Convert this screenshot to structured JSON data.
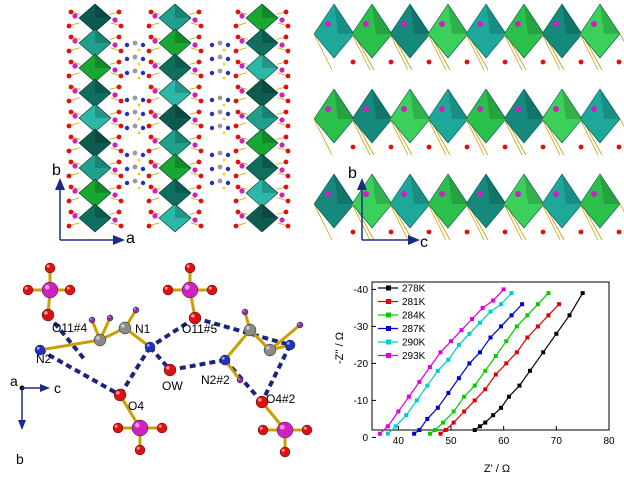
{
  "panel_a": {
    "axis_b": "b",
    "axis_a": "a"
  },
  "panel_b": {
    "axis_b": "b",
    "axis_c": "c"
  },
  "panel_c": {
    "labels": {
      "o11_4": "O11#4",
      "o11_5": "O11#5",
      "n1": "N1",
      "n2": "N2",
      "ow": "OW",
      "n2_2": "N2#2",
      "o4": "O4",
      "o4_2": "O4#2"
    },
    "axis_a": "a",
    "axis_c": "c",
    "axis_b": "b"
  },
  "chart_data": {
    "type": "line",
    "xlabel": "Z' / Ω",
    "ylabel": "-Z'' / Ω",
    "xlim": [
      35,
      80
    ],
    "ylim": [
      -2,
      -42
    ],
    "xticks": [
      "40",
      "50",
      "60",
      "70",
      "80"
    ],
    "yticks": [
      "0",
      "-10",
      "-20",
      "-30",
      "-40"
    ],
    "legend_position": "top-left",
    "series": [
      {
        "name": "278K",
        "color": "#000000",
        "x": [
          54.5,
          55.5,
          56.5,
          58,
          59.5,
          61,
          63,
          65,
          67.5,
          70,
          72.5,
          75
        ],
        "y": [
          -2,
          -3,
          -4,
          -6,
          -8,
          -11,
          -14,
          -18,
          -23,
          -28,
          -33,
          -39
        ]
      },
      {
        "name": "281K",
        "color": "#dd0000",
        "x": [
          48,
          49,
          50.5,
          52.5,
          54.5,
          56.5,
          58.5,
          60.5,
          62.5,
          64.5,
          66.5,
          68.5,
          70.5
        ],
        "y": [
          -1,
          -2,
          -4,
          -7,
          -10,
          -13,
          -17,
          -20,
          -23,
          -27,
          -30,
          -33,
          -36
        ]
      },
      {
        "name": "284K",
        "color": "#00cc00",
        "x": [
          46,
          47,
          48.5,
          50.5,
          52.5,
          54.5,
          56.5,
          58.5,
          60.5,
          62.5,
          64.5,
          66.5,
          68.5
        ],
        "y": [
          -1,
          -2,
          -4,
          -7,
          -11,
          -14,
          -18,
          -22,
          -26,
          -30,
          -33,
          -36,
          -39
        ]
      },
      {
        "name": "287K",
        "color": "#0000cc",
        "x": [
          43,
          44,
          45.5,
          47.5,
          49.5,
          51.5,
          53.5,
          55.5,
          57.5,
          59.5,
          61.5,
          63.5
        ],
        "y": [
          -1,
          -2,
          -5,
          -8,
          -12,
          -16,
          -20,
          -23,
          -27,
          -30,
          -33,
          -36
        ]
      },
      {
        "name": "290K",
        "color": "#00cccc",
        "x": [
          38,
          39.5,
          41.5,
          43.5,
          45.5,
          47.5,
          49.5,
          51.5,
          53.5,
          55.5,
          57.5,
          59.5,
          61.5
        ],
        "y": [
          -1,
          -3,
          -6,
          -10,
          -14,
          -18,
          -21,
          -25,
          -28,
          -31,
          -34,
          -36,
          -39
        ]
      },
      {
        "name": "293K",
        "color": "#dd00dd",
        "x": [
          36.5,
          38,
          40,
          42,
          44,
          46,
          48,
          50,
          52,
          54,
          56,
          58,
          60
        ],
        "y": [
          -1,
          -3,
          -7,
          -11,
          -15,
          -19,
          -23,
          -26,
          -29,
          -32,
          -35,
          -37,
          -40
        ]
      }
    ]
  }
}
